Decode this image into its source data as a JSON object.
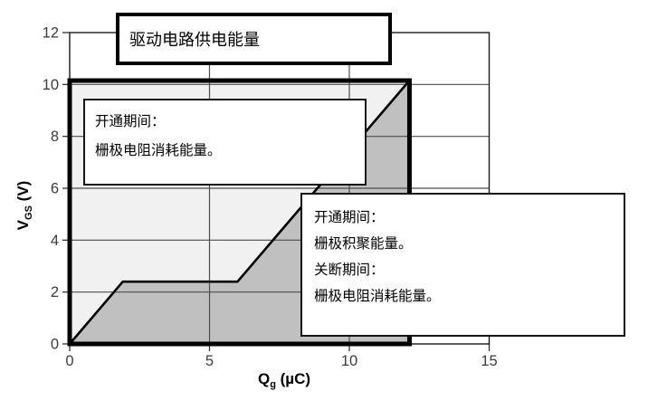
{
  "figure": {
    "background": "#ffffff"
  },
  "chart_data": {
    "type": "area",
    "title": "",
    "xlabel": "Qg (µC)",
    "ylabel": "VGS (V)",
    "xlabel_parts": {
      "main": "Q",
      "sub": "g",
      "unit": " (µC)"
    },
    "ylabel_parts": {
      "main": "V",
      "sub": "GS",
      "unit": " (V)"
    },
    "xlim": [
      0,
      15
    ],
    "ylim": [
      0,
      12
    ],
    "xticks": [
      0,
      5,
      10,
      15
    ],
    "yticks": [
      0,
      2,
      4,
      6,
      8,
      10,
      12
    ],
    "grid_x": [
      5,
      10
    ],
    "grid_y": [
      2,
      4,
      6,
      8,
      10
    ],
    "grid_on": true,
    "legend": "none",
    "curve": {
      "name": "gate-charge-curve",
      "points": [
        [
          0,
          0
        ],
        [
          1.9,
          2.4
        ],
        [
          6.0,
          2.4
        ],
        [
          12.15,
          10.15
        ]
      ]
    },
    "bold_box": {
      "q0": 0,
      "v0": 0,
      "q1": 12.15,
      "v1": 10.15
    },
    "fills": {
      "above_curve": "#f1f1f1",
      "below_curve": "#c0c0c0"
    },
    "colors": {
      "grid": "#4d4d4d",
      "plot_border": "#1a1a1a",
      "curve": "#000000",
      "bold_box": "#000000",
      "tick_label": "#3b3b3b"
    }
  },
  "callouts": [
    {
      "name": "drive-supply-energy",
      "lines": [
        "驱动电路供电能量"
      ]
    },
    {
      "name": "turn-on-gate-resistor-loss",
      "lines": [
        "开通期间：",
        "栅极电阻消耗能量。"
      ]
    },
    {
      "name": "gate-stored-and-turn-off-loss",
      "lines": [
        "开通期间：",
        "栅极积聚能量。",
        "关断期间：",
        "栅极电阻消耗能量。"
      ]
    }
  ]
}
